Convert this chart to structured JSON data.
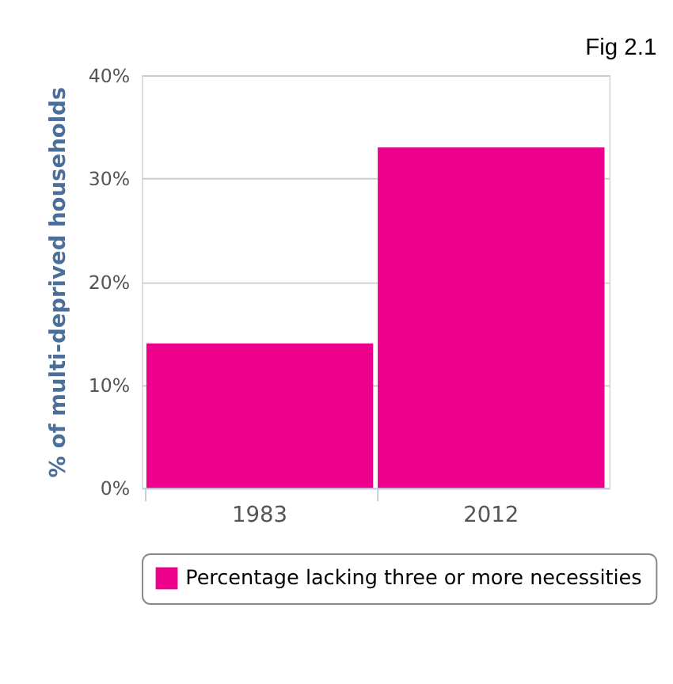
{
  "chart_data": {
    "type": "bar",
    "title": "Fig 2.1",
    "ylabel": "% of multi-deprived households",
    "categories": [
      "1983",
      "2012"
    ],
    "series": [
      {
        "name": "Percentage lacking three or more necessities",
        "color": "#ec008c",
        "values": [
          14,
          33
        ]
      }
    ],
    "ylim": [
      0,
      40
    ],
    "yticks": [
      {
        "value": 0,
        "label": "0%"
      },
      {
        "value": 10,
        "label": "10%"
      },
      {
        "value": 20,
        "label": "20%"
      },
      {
        "value": 30,
        "label": "30%"
      },
      {
        "value": 40,
        "label": "40%"
      }
    ],
    "grid": "y",
    "legend": "bottom"
  }
}
